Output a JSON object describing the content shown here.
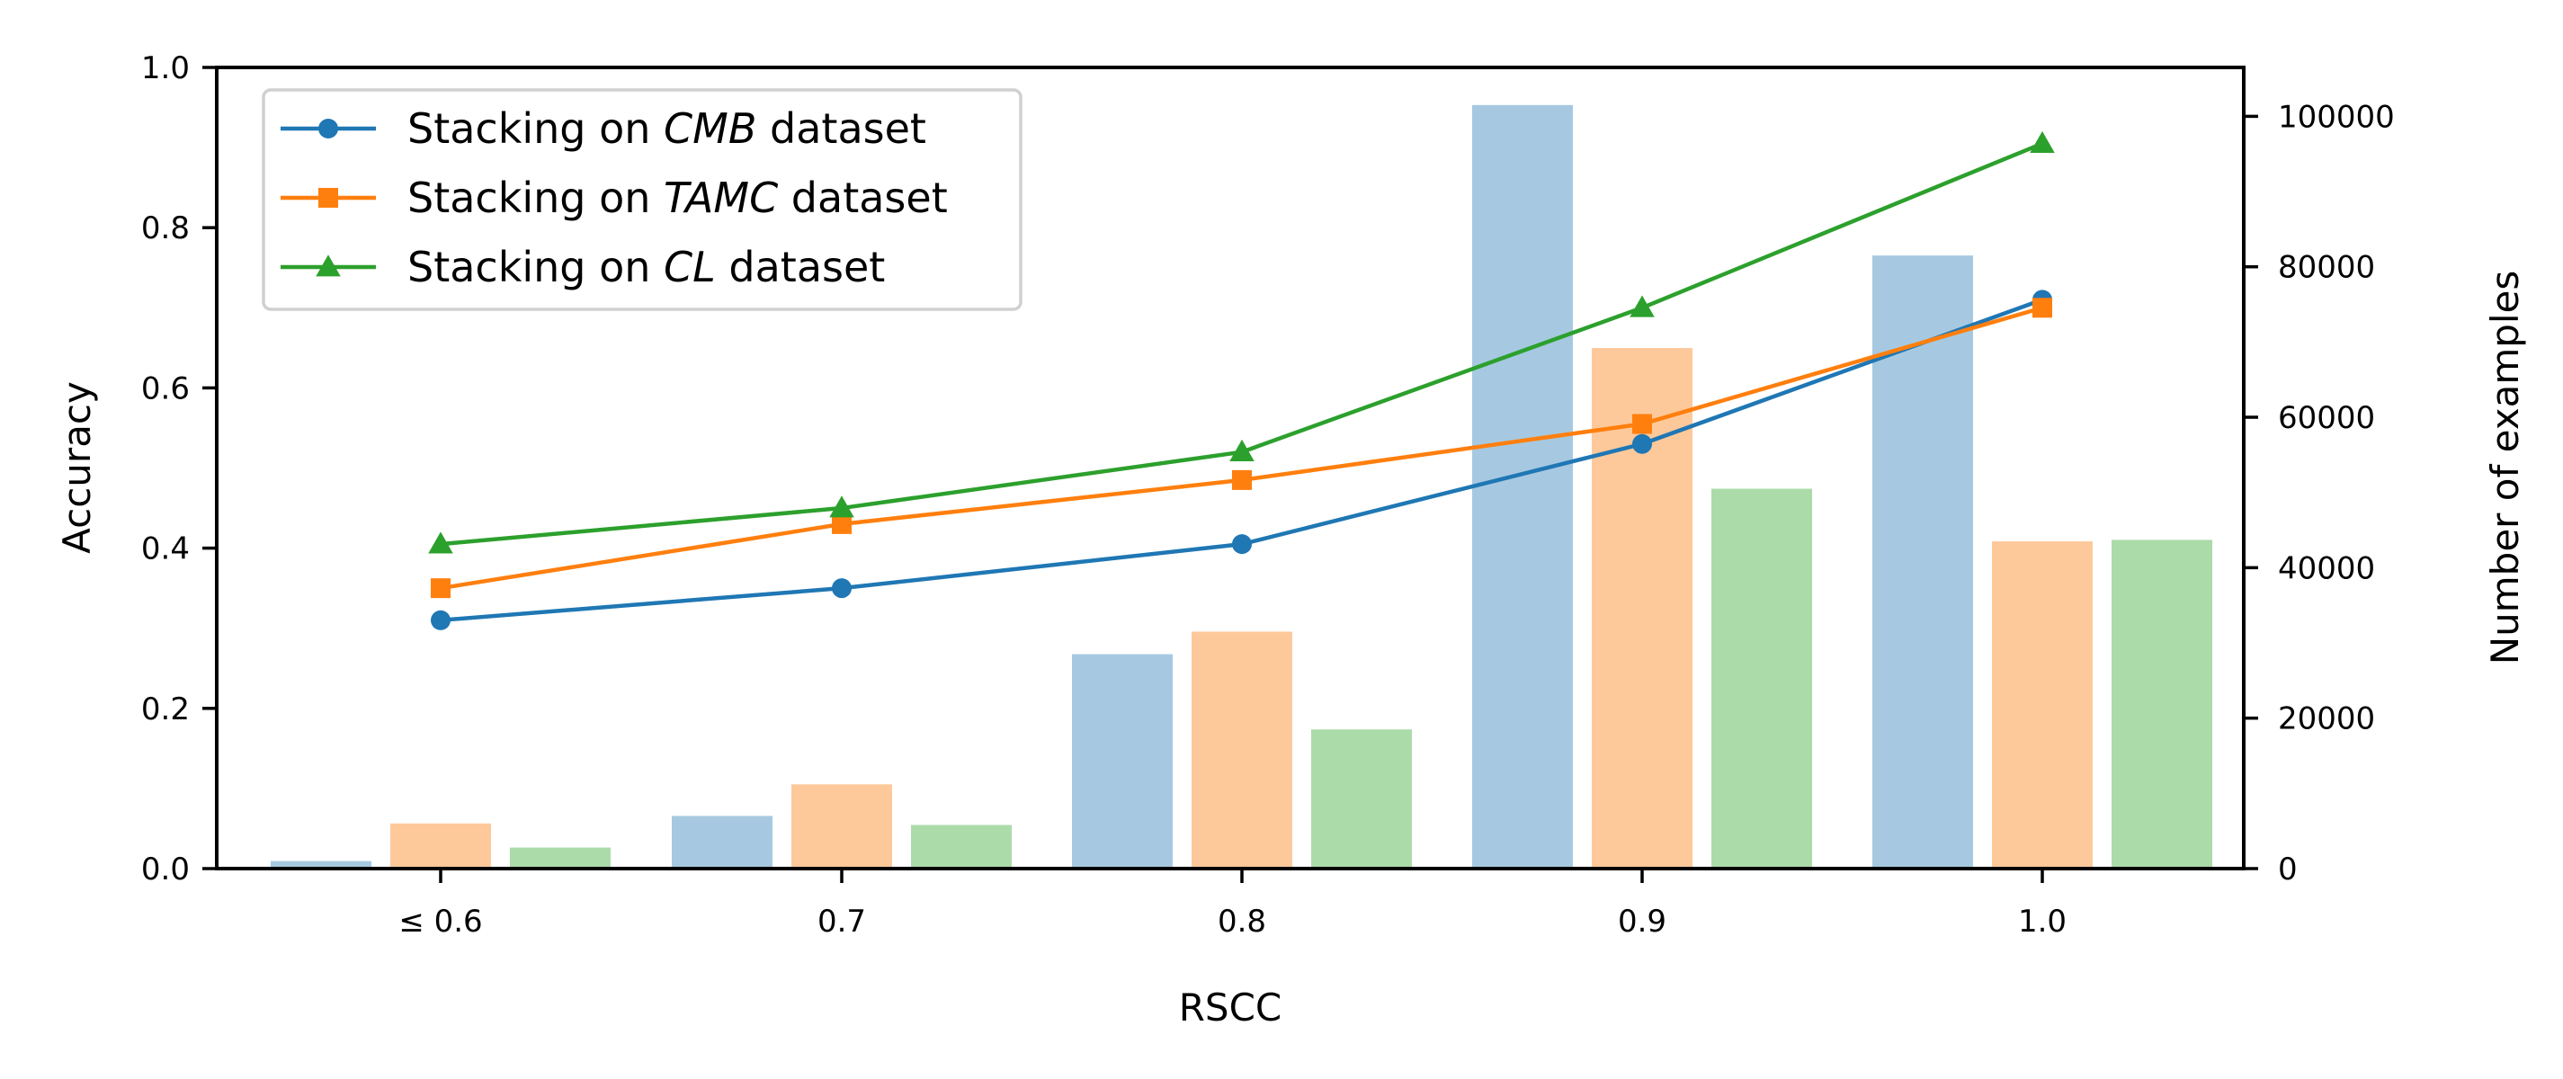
{
  "chart_data": {
    "type": "bar+line",
    "categories": [
      "≤ 0.6",
      "0.7",
      "0.8",
      "0.9",
      "1.0"
    ],
    "xlabel": "RSCC",
    "ylabel_left": "Accuracy",
    "ylabel_right": "Number of examples",
    "ylim_left": [
      0,
      1.0
    ],
    "ylim_right": [
      0,
      106500
    ],
    "yticks_left": [
      "0.0",
      "0.2",
      "0.4",
      "0.6",
      "0.8",
      "1.0"
    ],
    "yticks_right": [
      "0",
      "20000",
      "40000",
      "60000",
      "80000",
      "100000"
    ],
    "bar_series": [
      {
        "color": "#a6c9e1",
        "values": [
          1000,
          7000,
          28500,
          101500,
          81500
        ]
      },
      {
        "color": "#fec99a",
        "values": [
          6000,
          11200,
          31500,
          69200,
          43500
        ]
      },
      {
        "color": "#acdbaa",
        "values": [
          2800,
          5800,
          18500,
          50500,
          43700
        ]
      }
    ],
    "line_series": [
      {
        "legend_prefix": "Stacking on ",
        "legend_em": "CMB",
        "legend_suffix": " dataset",
        "color": "#1f77b4",
        "marker": "circle",
        "values": [
          0.31,
          0.35,
          0.405,
          0.53,
          0.71
        ]
      },
      {
        "legend_prefix": "Stacking on ",
        "legend_em": "TAMC",
        "legend_suffix": " dataset",
        "color": "#ff7f0e",
        "marker": "square",
        "values": [
          0.35,
          0.43,
          0.485,
          0.555,
          0.7
        ]
      },
      {
        "legend_prefix": "Stacking on ",
        "legend_em": "CL",
        "legend_suffix": " dataset",
        "color": "#2ca02c",
        "marker": "triangle",
        "values": [
          0.405,
          0.45,
          0.52,
          0.7,
          0.905
        ]
      }
    ],
    "legend_position": "upper-left",
    "grid": false
  }
}
